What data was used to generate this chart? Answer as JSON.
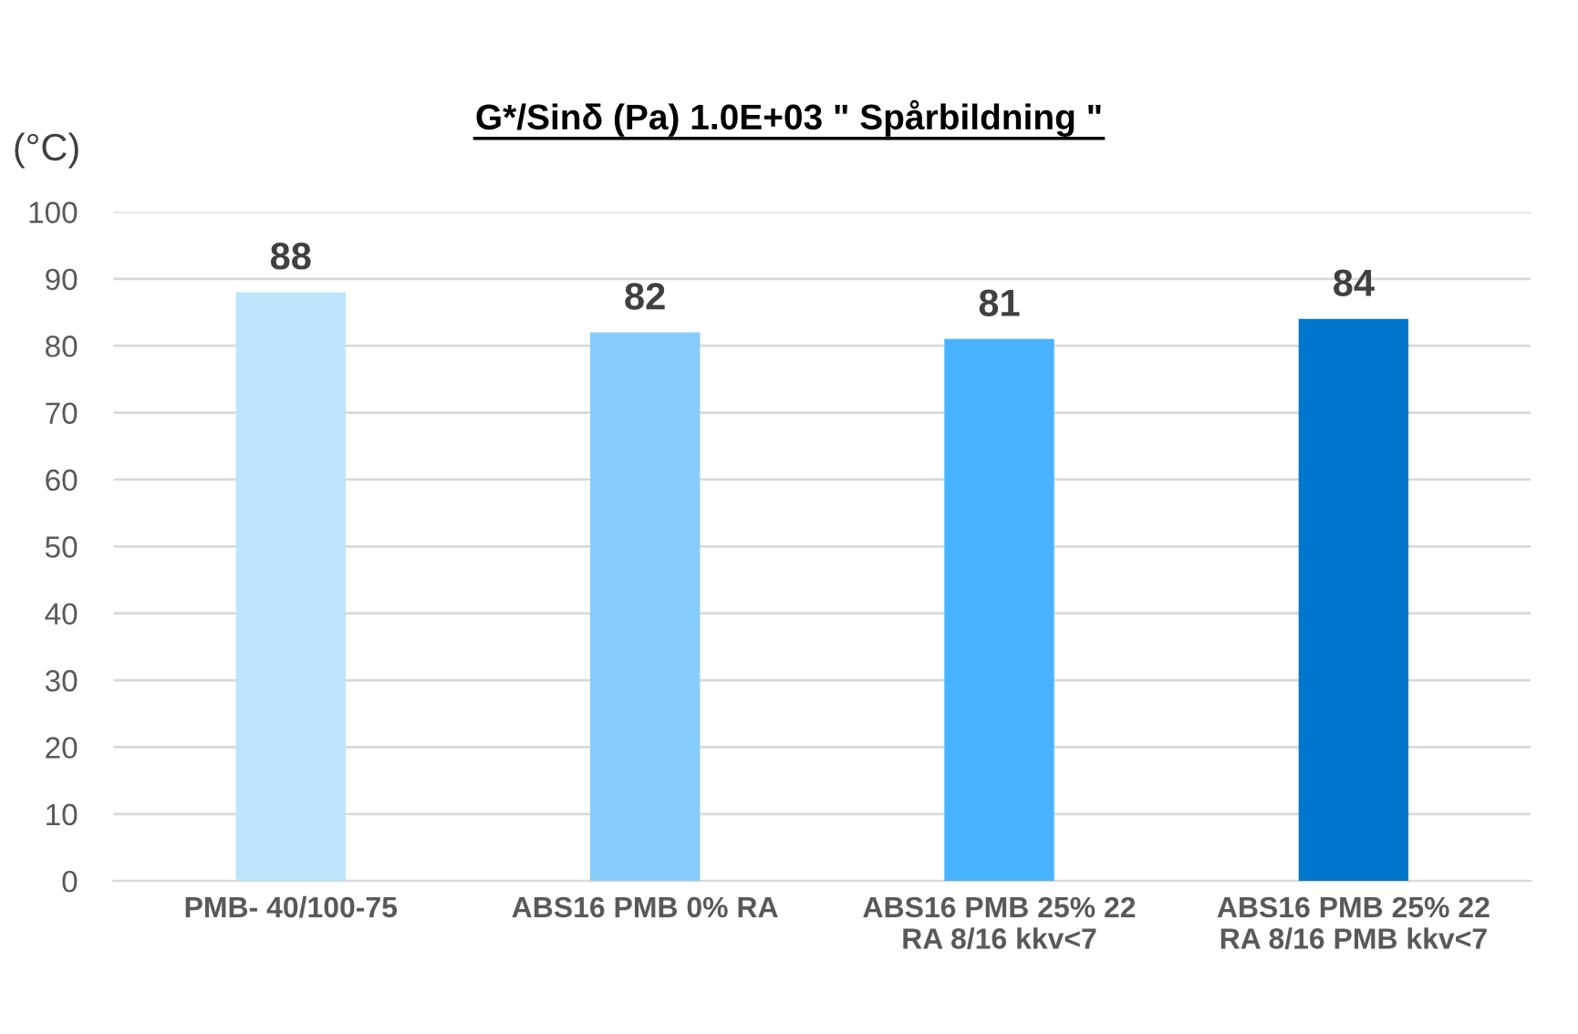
{
  "chart_data": {
    "type": "bar",
    "title": "G*/Sinδ (Pa) 1.0E+03 \" Spårbildning \"",
    "ylabel": "(°C)",
    "categories": [
      "PMB- 40/100-75",
      "ABS16 PMB 0% RA",
      "ABS16 PMB 25% 22\nRA 8/16 kkv<7",
      "ABS16 PMB 25% 22\nRA 8/16 PMB kkv<7"
    ],
    "values": [
      88,
      82,
      81,
      84
    ],
    "colors": [
      "#bde5fc",
      "#87cdfb",
      "#47b3fe",
      "#0077cc"
    ],
    "ylim": [
      0,
      100
    ],
    "yticks": [
      0,
      10,
      20,
      30,
      40,
      50,
      60,
      70,
      80,
      90,
      100
    ],
    "grid": "y",
    "data_labels": true,
    "legend": false
  }
}
